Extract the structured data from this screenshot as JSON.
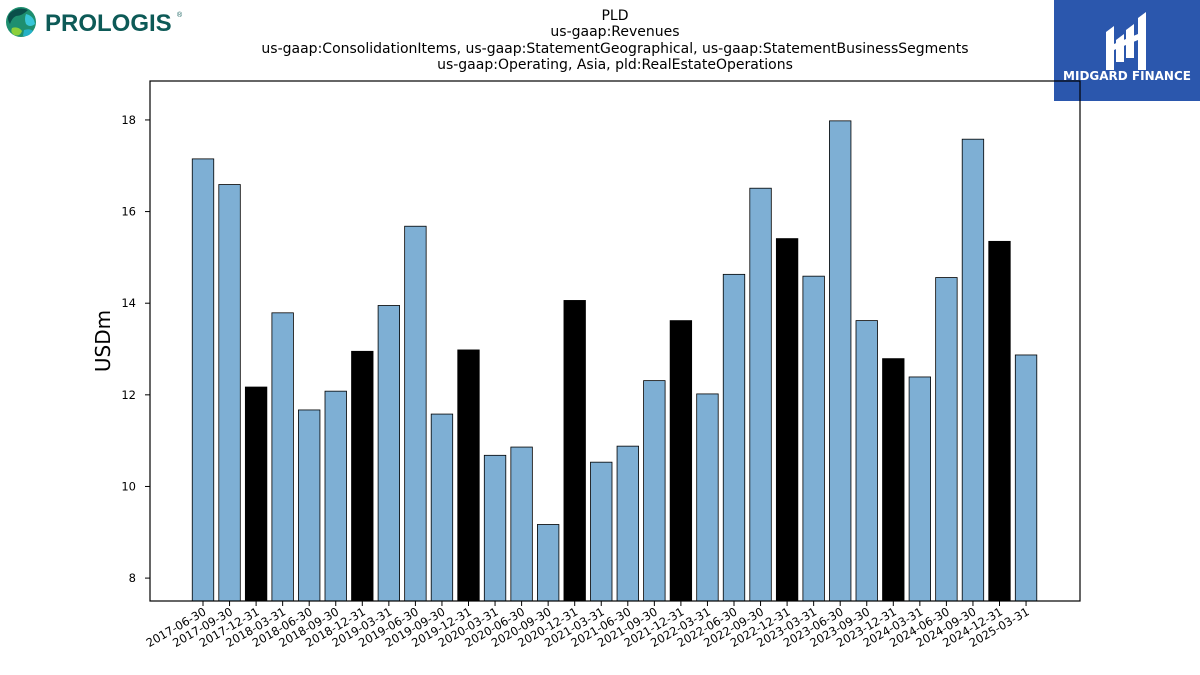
{
  "brand": {
    "company_logo_text": "PROLOGIS",
    "company_logo_reg": "®",
    "publisher_logo_text": "MIDGARD FINANCE"
  },
  "chart_data": {
    "type": "bar",
    "title_lines": [
      "PLD",
      "us-gaap:Revenues",
      "us-gaap:ConsolidationItems, us-gaap:StatementGeographical, us-gaap:StatementBusinessSegments",
      "us-gaap:Operating, Asia, pld:RealEstateOperations"
    ],
    "ylabel": "USDm",
    "xlabel": "",
    "ylim": [
      7.5,
      18.85
    ],
    "yticks": [
      8,
      10,
      12,
      14,
      16,
      18
    ],
    "categories": [
      "2017-06-30",
      "2017-09-30",
      "2017-12-31",
      "2018-03-31",
      "2018-06-30",
      "2018-09-30",
      "2018-12-31",
      "2019-03-31",
      "2019-06-30",
      "2019-09-30",
      "2019-12-31",
      "2020-03-31",
      "2020-06-30",
      "2020-09-30",
      "2020-12-31",
      "2021-03-31",
      "2021-06-30",
      "2021-09-30",
      "2021-12-31",
      "2022-03-31",
      "2022-06-30",
      "2022-09-30",
      "2022-12-31",
      "2023-03-31",
      "2023-06-30",
      "2023-09-30",
      "2023-12-31",
      "2024-03-31",
      "2024-06-30",
      "2024-09-30",
      "2024-12-31",
      "2025-03-31"
    ],
    "values": [
      17.15,
      16.59,
      12.17,
      13.79,
      11.67,
      12.08,
      12.95,
      13.95,
      15.68,
      11.58,
      12.98,
      10.68,
      10.86,
      9.17,
      14.06,
      10.53,
      10.88,
      12.31,
      13.62,
      12.02,
      14.63,
      16.51,
      15.41,
      14.59,
      17.98,
      13.62,
      12.79,
      12.39,
      14.56,
      17.58,
      15.35,
      12.87
    ],
    "year_end_color": "#000000",
    "quarter_color": "#7eafd4",
    "grid": false,
    "legend": "none"
  }
}
